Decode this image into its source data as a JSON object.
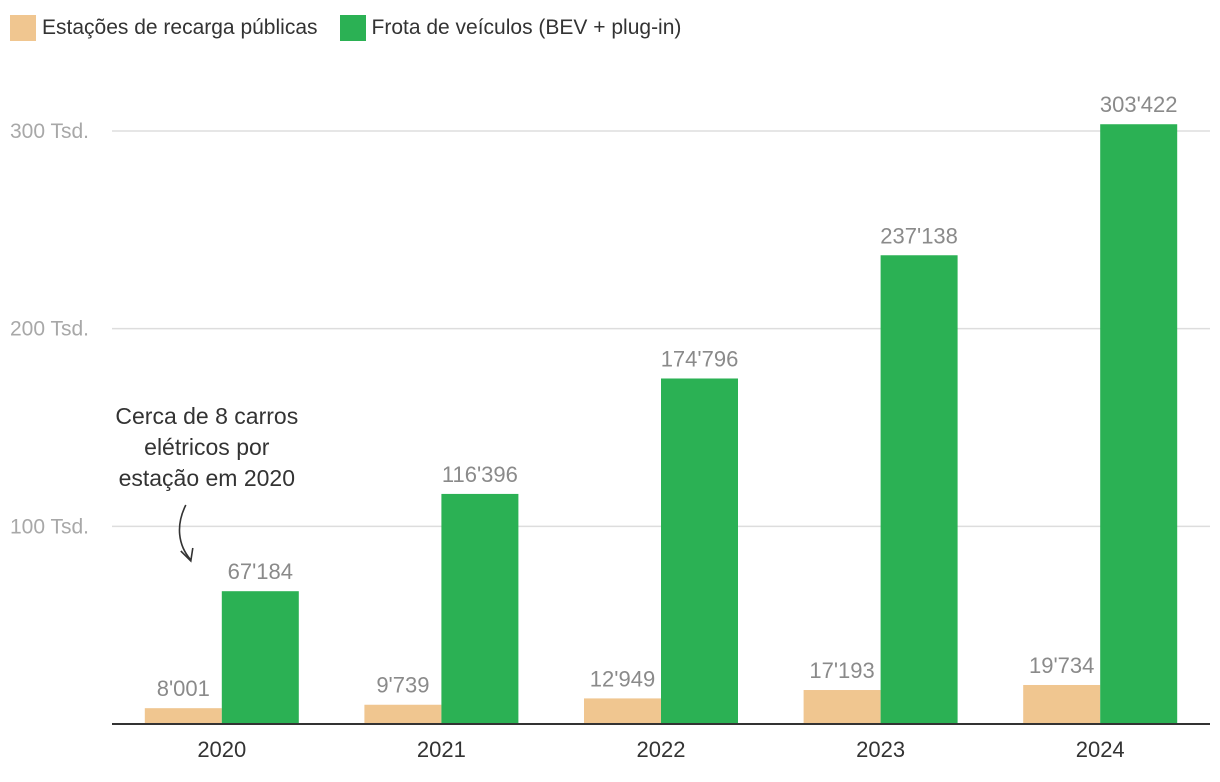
{
  "legend": [
    {
      "label": "Estações de recarga públicas",
      "color": "#f0c690"
    },
    {
      "label": "Frota de veículos (BEV + plug-in)",
      "color": "#2bb154"
    }
  ],
  "chart_data": {
    "type": "bar",
    "title": "",
    "xlabel": "",
    "ylabel": "",
    "categories": [
      "2020",
      "2021",
      "2022",
      "2023",
      "2024"
    ],
    "series": [
      {
        "name": "Estações de recarga públicas",
        "color": "#f0c690",
        "values": [
          8001,
          9739,
          12949,
          17193,
          19734
        ],
        "labels": [
          "8'001",
          "9'739",
          "12'949",
          "17'193",
          "19'734"
        ]
      },
      {
        "name": "Frota de veículos (BEV + plug-in)",
        "color": "#2bb154",
        "values": [
          67184,
          116396,
          174796,
          237138,
          303422
        ],
        "labels": [
          "67'184",
          "116'396",
          "174'796",
          "237'138",
          "303'422"
        ]
      }
    ],
    "ylim": [
      0,
      300000
    ],
    "yticks": [
      {
        "value": 100000,
        "label": "100 Tsd."
      },
      {
        "value": 200000,
        "label": "200 Tsd."
      },
      {
        "value": 300000,
        "label": "300 Tsd."
      }
    ],
    "grid": true,
    "annotation": {
      "lines": [
        "Cerca de 8 carros",
        "elétricos por",
        "estação em 2020"
      ],
      "category": "2020"
    }
  }
}
